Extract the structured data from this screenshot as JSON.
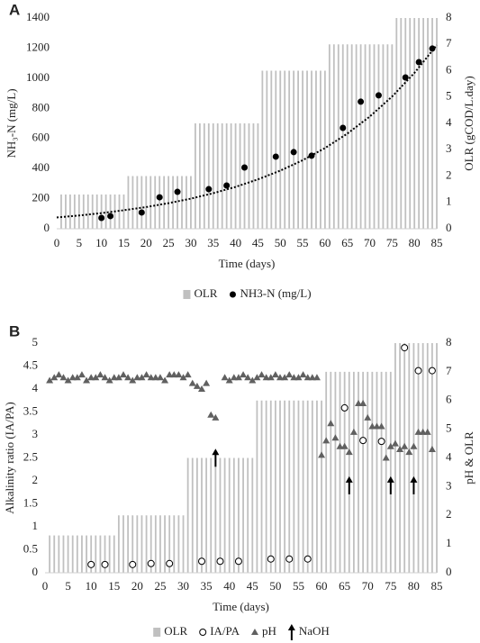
{
  "chart_data": [
    {
      "type": "combo",
      "label": "A",
      "xlabel": "Time (days)",
      "ylabel": "NH₃-N (mg/L)",
      "y2label": "OLR (gCOD/L.day)",
      "xlim": [
        0,
        85
      ],
      "xticks": [
        0,
        5,
        10,
        15,
        20,
        25,
        30,
        35,
        40,
        45,
        50,
        55,
        60,
        65,
        70,
        75,
        80,
        85
      ],
      "ylim": [
        0,
        1400
      ],
      "yticks": [
        0,
        200,
        400,
        600,
        800,
        1000,
        1200,
        1400
      ],
      "y2lim": [
        0,
        8
      ],
      "y2ticks": [
        0,
        1,
        2,
        3,
        4,
        5,
        6,
        7,
        8
      ],
      "series": [
        {
          "name": "OLR",
          "type": "bar",
          "marker": "square",
          "axis": "y2",
          "color": "#c0c0c0",
          "x": [
            1,
            2,
            3,
            4,
            5,
            6,
            7,
            8,
            9,
            10,
            11,
            12,
            13,
            14,
            15,
            16,
            17,
            18,
            19,
            20,
            21,
            22,
            23,
            24,
            25,
            26,
            27,
            28,
            29,
            30,
            31,
            32,
            33,
            34,
            35,
            36,
            37,
            38,
            39,
            40,
            41,
            42,
            43,
            44,
            45,
            46,
            47,
            48,
            49,
            50,
            51,
            52,
            53,
            54,
            55,
            56,
            57,
            58,
            59,
            60,
            61,
            62,
            63,
            64,
            65,
            66,
            67,
            68,
            69,
            70,
            71,
            72,
            73,
            74,
            75,
            76,
            77,
            78,
            79,
            80,
            81,
            82,
            83,
            84,
            85
          ],
          "values": [
            1.3,
            1.3,
            1.3,
            1.3,
            1.3,
            1.3,
            1.3,
            1.3,
            1.3,
            1.3,
            1.3,
            1.3,
            1.3,
            1.3,
            1.3,
            2,
            2,
            2,
            2,
            2,
            2,
            2,
            2,
            2,
            2,
            2,
            2,
            2,
            2,
            2,
            4,
            4,
            4,
            4,
            4,
            4,
            4,
            4,
            4,
            4,
            4,
            4,
            4,
            4,
            4,
            6,
            6,
            6,
            6,
            6,
            6,
            6,
            6,
            6,
            6,
            6,
            6,
            6,
            6,
            6,
            7,
            7,
            7,
            7,
            7,
            7,
            7,
            7,
            7,
            7,
            7,
            7,
            7,
            7,
            7,
            8,
            8,
            8,
            8,
            8,
            8,
            8,
            8,
            8,
            8
          ]
        },
        {
          "name": "NH3-N (mg/L)",
          "type": "scatter",
          "marker": "circle",
          "color": "#000000",
          "x": [
            10,
            12,
            19,
            23,
            27,
            34,
            38,
            42,
            49,
            53,
            57,
            64,
            68,
            72,
            78,
            81,
            84
          ],
          "values": [
            72,
            84,
            108,
            209,
            245,
            263,
            287,
            407,
            479,
            509,
            485,
            670,
            844,
            886,
            1005,
            1107,
            1197
          ]
        },
        {
          "type": "line",
          "style": "dotted",
          "color": "#000000",
          "x": [
            0,
            5,
            10,
            15,
            20,
            25,
            30,
            35,
            40,
            45,
            50,
            55,
            60,
            65,
            70,
            75,
            80,
            85
          ],
          "values": [
            75,
            88,
            104,
            123,
            144,
            170,
            200,
            236,
            278,
            328,
            386,
            455,
            536,
            632,
            745,
            878,
            1035,
            1220
          ]
        }
      ]
    },
    {
      "type": "combo",
      "label": "B",
      "xlabel": "Time (days)",
      "ylabel": "Alkalinity ratio (IA/PA)",
      "y2label": "pH & OLR",
      "xlim": [
        0,
        85
      ],
      "xticks": [
        0,
        5,
        10,
        15,
        20,
        25,
        30,
        35,
        40,
        45,
        50,
        55,
        60,
        65,
        70,
        75,
        80,
        85
      ],
      "ylim": [
        0,
        5
      ],
      "yticks": [
        0,
        0.5,
        1,
        1.5,
        2,
        2.5,
        3,
        3.5,
        4,
        4.5,
        5
      ],
      "y2lim": [
        0,
        8
      ],
      "y2ticks": [
        0,
        1,
        2,
        3,
        4,
        5,
        6,
        7,
        8
      ],
      "series": [
        {
          "name": "OLR",
          "type": "bar",
          "marker": "square",
          "axis": "y2",
          "color": "#c0c0c0",
          "x": [
            1,
            2,
            3,
            4,
            5,
            6,
            7,
            8,
            9,
            10,
            11,
            12,
            13,
            14,
            15,
            16,
            17,
            18,
            19,
            20,
            21,
            22,
            23,
            24,
            25,
            26,
            27,
            28,
            29,
            30,
            31,
            32,
            33,
            34,
            35,
            36,
            37,
            38,
            39,
            40,
            41,
            42,
            43,
            44,
            45,
            46,
            47,
            48,
            49,
            50,
            51,
            52,
            53,
            54,
            55,
            56,
            57,
            58,
            59,
            60,
            61,
            62,
            63,
            64,
            65,
            66,
            67,
            68,
            69,
            70,
            71,
            72,
            73,
            74,
            75,
            76,
            77,
            78,
            79,
            80,
            81,
            82,
            83,
            84,
            85
          ],
          "values": [
            1.3,
            1.3,
            1.3,
            1.3,
            1.3,
            1.3,
            1.3,
            1.3,
            1.3,
            1.3,
            1.3,
            1.3,
            1.3,
            1.3,
            1.3,
            2,
            2,
            2,
            2,
            2,
            2,
            2,
            2,
            2,
            2,
            2,
            2,
            2,
            2,
            2,
            4,
            4,
            4,
            4,
            4,
            4,
            4,
            4,
            4,
            4,
            4,
            4,
            4,
            4,
            4,
            6,
            6,
            6,
            6,
            6,
            6,
            6,
            6,
            6,
            6,
            6,
            6,
            6,
            6,
            6,
            7,
            7,
            7,
            7,
            7,
            7,
            7,
            7,
            7,
            7,
            7,
            7,
            7,
            7,
            7,
            8,
            8,
            8,
            8,
            8,
            8,
            8,
            8,
            8,
            8
          ]
        },
        {
          "name": "IA/PA",
          "type": "scatter",
          "marker": "open-circle",
          "color": "#000000",
          "x": [
            10,
            13,
            19,
            23,
            27,
            34,
            38,
            42,
            49,
            53,
            57,
            65,
            69,
            73,
            78,
            81,
            84
          ],
          "values": [
            0.18,
            0.18,
            0.18,
            0.2,
            0.2,
            0.25,
            0.25,
            0.25,
            0.3,
            0.3,
            0.3,
            3.59,
            2.88,
            2.86,
            4.9,
            4.4,
            4.4
          ]
        },
        {
          "name": "pH",
          "type": "scatter",
          "marker": "triangle",
          "axis": "y2",
          "color": "#606060",
          "x": [
            1,
            2,
            3,
            4,
            5,
            6,
            7,
            8,
            9,
            10,
            11,
            12,
            13,
            14,
            15,
            16,
            17,
            18,
            19,
            20,
            21,
            22,
            23,
            24,
            25,
            26,
            27,
            28,
            29,
            30,
            31,
            32,
            33,
            34,
            35,
            36,
            37,
            39,
            40,
            41,
            42,
            43,
            44,
            45,
            46,
            47,
            48,
            49,
            50,
            51,
            52,
            53,
            54,
            55,
            56,
            57,
            58,
            59,
            60,
            61,
            62,
            63,
            64,
            65,
            66,
            67,
            68,
            69,
            70,
            71,
            72,
            73,
            74,
            75,
            76,
            77,
            78,
            79,
            80,
            81,
            82,
            83,
            84
          ],
          "values": [
            6.7,
            6.8,
            6.9,
            6.8,
            6.7,
            6.8,
            6.8,
            6.9,
            6.7,
            6.8,
            6.8,
            6.9,
            6.8,
            6.7,
            6.8,
            6.8,
            6.9,
            6.8,
            6.7,
            6.8,
            6.8,
            6.9,
            6.8,
            6.8,
            6.8,
            6.7,
            6.9,
            6.9,
            6.9,
            6.8,
            6.9,
            6.6,
            6.5,
            6.4,
            6.6,
            5.5,
            5.4,
            6.8,
            6.7,
            6.8,
            6.8,
            6.9,
            6.8,
            6.7,
            6.8,
            6.9,
            6.8,
            6.8,
            6.9,
            6.8,
            6.8,
            6.9,
            6.8,
            6.8,
            6.9,
            6.8,
            6.8,
            6.8,
            4.1,
            4.6,
            5.2,
            4.7,
            4.4,
            4.4,
            4.2,
            4.9,
            5.9,
            5.9,
            5.4,
            5.1,
            5.1,
            5.1,
            4.0,
            4.4,
            4.5,
            4.3,
            4.4,
            4.2,
            4.4,
            4.9,
            4.9,
            4.9,
            4.3
          ]
        },
        {
          "name": "NaOH",
          "type": "arrow",
          "marker": "arrow",
          "color": "#000000",
          "x": [
            37,
            66,
            75,
            80
          ],
          "values": [
            2.7,
            2.1,
            2.1,
            2.1
          ]
        }
      ]
    }
  ]
}
